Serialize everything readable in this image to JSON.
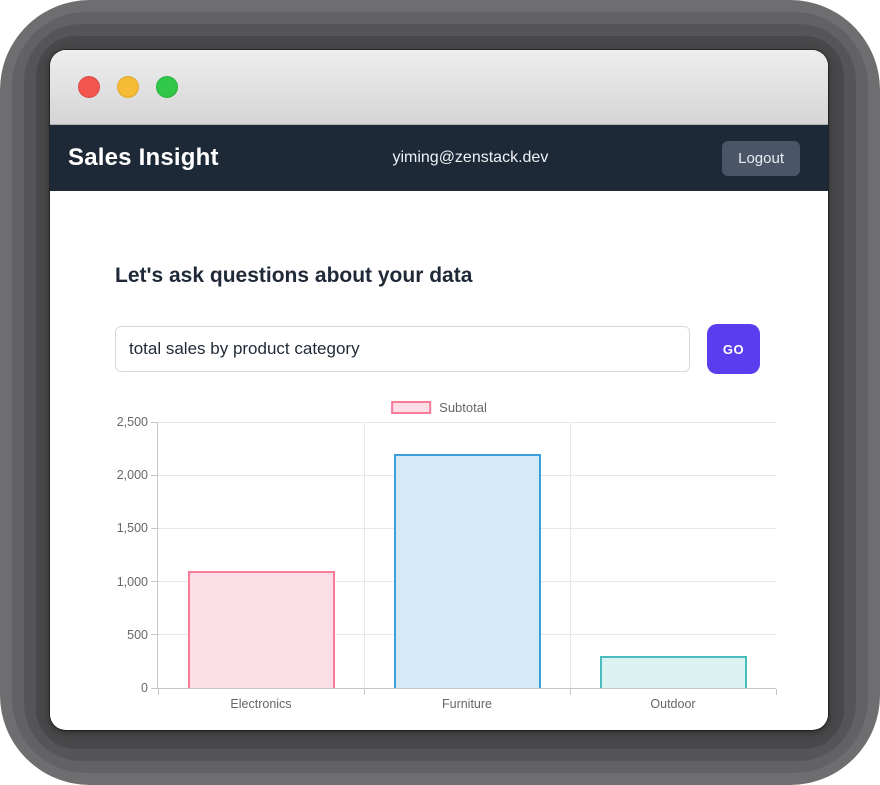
{
  "colors": {
    "navbar_bg": "#1e2938",
    "accent": "#5b3df0",
    "logout_bg": "#4a5568",
    "heading_text": "#1f2937"
  },
  "window": {
    "traffic_lights": [
      "close",
      "minimize",
      "zoom"
    ]
  },
  "navbar": {
    "brand": "Sales Insight",
    "user_email": "yiming@zenstack.dev",
    "logout_label": "Logout"
  },
  "main": {
    "heading": "Let's ask questions about your data",
    "query_value": "total sales by product category",
    "go_label": "GO"
  },
  "chart_data": {
    "type": "bar",
    "title": "",
    "categories": [
      "Electronics",
      "Furniture",
      "Outdoor"
    ],
    "series": [
      {
        "name": "Subtotal",
        "values": [
          1100,
          2200,
          300
        ]
      }
    ],
    "ylim": [
      0,
      2500
    ],
    "ytick_step": 500,
    "ytick_labels": [
      "0",
      "500",
      "1,000",
      "1,500",
      "2,000",
      "2,500"
    ],
    "grid": true,
    "legend_position": "top",
    "bar_styles": [
      {
        "fill": "#fcdfe6",
        "border": "#f77c98"
      },
      {
        "fill": "#d5eaf8",
        "border": "#3d9fd9"
      },
      {
        "fill": "#dcf2f1",
        "border": "#46bdbf"
      }
    ],
    "legend_style": {
      "fill": "#fcdfe6",
      "border": "#f77c98"
    }
  }
}
